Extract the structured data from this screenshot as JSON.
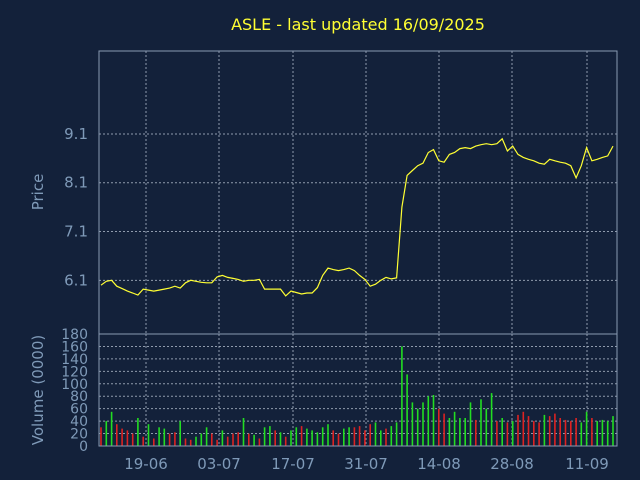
{
  "chart_data": [
    {
      "type": "line",
      "title": "ASLE - last updated 16/09/2025",
      "ylabel": "Price",
      "ylim": [
        5.0,
        10.8
      ],
      "y_ticks": [
        "6.1",
        "7.1",
        "8.1",
        "9.1"
      ],
      "x_ticks": [
        "19-06",
        "03-07",
        "17-07",
        "31-07",
        "14-08",
        "28-08",
        "11-09"
      ],
      "grid": true,
      "series": [
        {
          "color": "#ffff33",
          "values": [
            6.0,
            6.08,
            6.1,
            5.98,
            5.93,
            5.88,
            5.84,
            5.8,
            5.92,
            5.9,
            5.88,
            5.9,
            5.92,
            5.94,
            5.98,
            5.94,
            6.05,
            6.1,
            6.08,
            6.06,
            6.05,
            6.05,
            6.17,
            6.2,
            6.16,
            6.14,
            6.12,
            6.08,
            6.1,
            6.1,
            6.12,
            5.92,
            5.92,
            5.92,
            5.92,
            5.78,
            5.88,
            5.85,
            5.82,
            5.84,
            5.84,
            5.95,
            6.2,
            6.35,
            6.32,
            6.3,
            6.32,
            6.35,
            6.3,
            6.2,
            6.12,
            5.98,
            6.02,
            6.1,
            6.16,
            6.13,
            6.15,
            7.6,
            8.25,
            8.35,
            8.45,
            8.5,
            8.72,
            8.78,
            8.55,
            8.52,
            8.68,
            8.72,
            8.8,
            8.82,
            8.8,
            8.85,
            8.88,
            8.9,
            8.88,
            8.9,
            9.0,
            8.75,
            8.85,
            8.68,
            8.62,
            8.58,
            8.55,
            8.5,
            8.48,
            8.58,
            8.55,
            8.52,
            8.5,
            8.45,
            8.2,
            8.45,
            8.82,
            8.55,
            8.58,
            8.62,
            8.65,
            8.85
          ]
        }
      ]
    },
    {
      "type": "bar",
      "ylabel": "Volume (0000)",
      "ylim": [
        0,
        180
      ],
      "y_ticks": [
        "0",
        "20",
        "40",
        "60",
        "80",
        "100",
        "120",
        "140",
        "160",
        "180"
      ],
      "x_ticks": [
        "19-06",
        "03-07",
        "17-07",
        "31-07",
        "14-08",
        "28-08",
        "11-09"
      ],
      "up_color": "#22dd22",
      "down_color": "#dd2222",
      "grid": true,
      "values": [
        30,
        40,
        55,
        35,
        28,
        25,
        20,
        45,
        15,
        35,
        12,
        30,
        28,
        20,
        22,
        40,
        12,
        10,
        15,
        20,
        30,
        20,
        10,
        25,
        15,
        20,
        22,
        45,
        20,
        18,
        12,
        30,
        32,
        25,
        22,
        15,
        25,
        30,
        32,
        28,
        25,
        22,
        30,
        35,
        25,
        20,
        28,
        30,
        30,
        32,
        25,
        35,
        38,
        25,
        28,
        32,
        38,
        160,
        115,
        70,
        60,
        70,
        80,
        82,
        60,
        52,
        45,
        55,
        45,
        45,
        70,
        42,
        75,
        60,
        85,
        40,
        45,
        38,
        40,
        50,
        55,
        48,
        40,
        38,
        50,
        48,
        52,
        45,
        42,
        40,
        45,
        38,
        55,
        45,
        40,
        42,
        40,
        48
      ],
      "directions": [
        "d",
        "u",
        "u",
        "d",
        "d",
        "d",
        "d",
        "u",
        "d",
        "u",
        "d",
        "u",
        "u",
        "d",
        "d",
        "u",
        "d",
        "d",
        "u",
        "u",
        "u",
        "d",
        "d",
        "u",
        "d",
        "d",
        "d",
        "u",
        "d",
        "u",
        "d",
        "u",
        "u",
        "d",
        "u",
        "d",
        "u",
        "u",
        "d",
        "u",
        "u",
        "u",
        "u",
        "u",
        "d",
        "d",
        "u",
        "u",
        "d",
        "d",
        "d",
        "d",
        "u",
        "u",
        "d",
        "u",
        "u",
        "u",
        "u",
        "u",
        "u",
        "u",
        "u",
        "u",
        "d",
        "d",
        "u",
        "u",
        "u",
        "u",
        "u",
        "d",
        "u",
        "u",
        "u",
        "d",
        "u",
        "d",
        "u",
        "d",
        "d",
        "d",
        "d",
        "d",
        "u",
        "d",
        "d",
        "d",
        "d",
        "d",
        "d",
        "u",
        "u",
        "d",
        "u",
        "u",
        "u",
        "u"
      ]
    }
  ]
}
